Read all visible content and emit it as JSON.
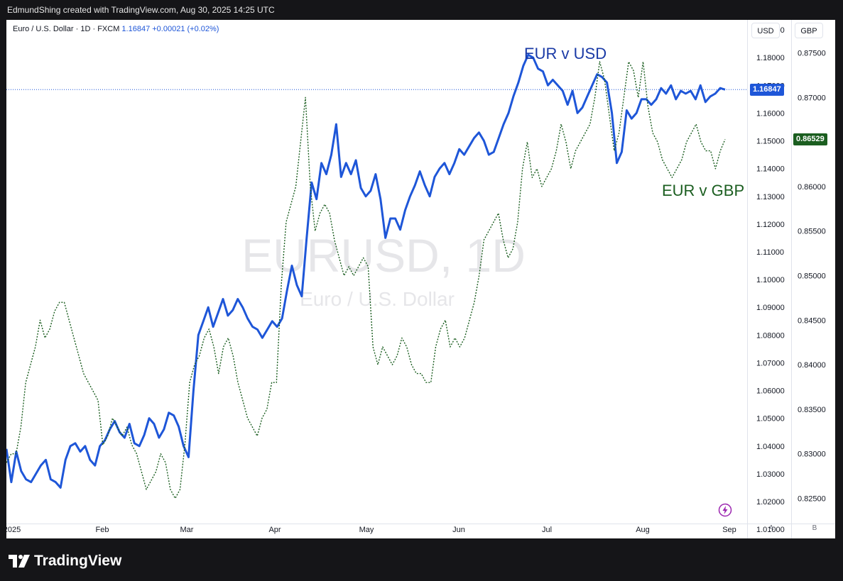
{
  "credit": "EdmundShing created with TradingView.com, Aug 30, 2025 14:25 UTC",
  "symbol": {
    "name": "Euro / U.S. Dollar · 1D · FXCM",
    "price": "1.16847",
    "change": "+0.00021 (+0.02%)"
  },
  "watermark": {
    "ticker": "EURUSD, 1D",
    "name": "Euro / U.S. Dollar"
  },
  "scale_buttons": {
    "left": "USD",
    "right": "GBP"
  },
  "axis_buttons": {
    "left": "A",
    "right": "B"
  },
  "logo_text": "TradingView",
  "colors": {
    "usd": "#1e56d8",
    "gbp": "#1b5e20",
    "background": "#151518"
  },
  "chart_data": {
    "type": "line",
    "x_axis": {
      "labels": [
        "2025",
        "Feb",
        "Mar",
        "Apr",
        "May",
        "Jun",
        "Jul",
        "Aug",
        "Sep"
      ]
    },
    "left_axis": {
      "ticks": [
        "1.19000",
        "1.18000",
        "1.17000",
        "1.16000",
        "1.15000",
        "1.14000",
        "1.13000",
        "1.12000",
        "1.11000",
        "1.10000",
        "1.09000",
        "1.08000",
        "1.07000",
        "1.06000",
        "1.05000",
        "1.04000",
        "1.03000",
        "1.02000",
        "1.01000"
      ],
      "range": [
        1.0067,
        1.1936
      ]
    },
    "right_axis": {
      "ticks": [
        "0.87500",
        "0.87000",
        "0.86500",
        "0.86000",
        "0.85500",
        "0.85000",
        "0.84500",
        "0.84000",
        "0.83500",
        "0.83000",
        "0.82500"
      ],
      "range": [
        0.8205,
        0.8787
      ]
    },
    "annotations": {
      "usd": "EUR v USD",
      "gbp": "EUR v GBP"
    },
    "last_values": {
      "usd": "1.16847",
      "gbp": "0.86529"
    },
    "series": [
      {
        "name": "EUR v USD",
        "axis": "left",
        "style": "solid",
        "values": [
          1.039,
          1.027,
          1.038,
          1.031,
          1.028,
          1.027,
          1.03,
          1.033,
          1.035,
          1.028,
          1.027,
          1.025,
          1.035,
          1.04,
          1.041,
          1.038,
          1.04,
          1.035,
          1.033,
          1.04,
          1.042,
          1.046,
          1.049,
          1.045,
          1.043,
          1.048,
          1.041,
          1.04,
          1.044,
          1.05,
          1.048,
          1.043,
          1.046,
          1.052,
          1.051,
          1.047,
          1.04,
          1.036,
          1.06,
          1.08,
          1.085,
          1.09,
          1.083,
          1.088,
          1.093,
          1.087,
          1.089,
          1.093,
          1.09,
          1.086,
          1.083,
          1.082,
          1.079,
          1.082,
          1.085,
          1.083,
          1.086,
          1.096,
          1.105,
          1.098,
          1.094,
          1.115,
          1.135,
          1.129,
          1.142,
          1.138,
          1.145,
          1.156,
          1.137,
          1.142,
          1.138,
          1.143,
          1.133,
          1.13,
          1.132,
          1.138,
          1.129,
          1.115,
          1.122,
          1.122,
          1.118,
          1.125,
          1.13,
          1.134,
          1.139,
          1.134,
          1.13,
          1.137,
          1.14,
          1.142,
          1.138,
          1.142,
          1.147,
          1.145,
          1.148,
          1.151,
          1.153,
          1.15,
          1.145,
          1.146,
          1.151,
          1.156,
          1.16,
          1.166,
          1.171,
          1.177,
          1.181,
          1.18,
          1.176,
          1.175,
          1.17,
          1.172,
          1.17,
          1.168,
          1.163,
          1.168,
          1.16,
          1.162,
          1.166,
          1.17,
          1.174,
          1.173,
          1.171,
          1.16,
          1.142,
          1.146,
          1.161,
          1.158,
          1.16,
          1.165,
          1.165,
          1.163,
          1.165,
          1.169,
          1.167,
          1.17,
          1.165,
          1.168,
          1.167,
          1.168,
          1.165,
          1.17,
          1.164,
          1.166,
          1.167,
          1.169,
          1.16847
        ]
      },
      {
        "name": "EUR v GBP",
        "axis": "right",
        "style": "dotted",
        "values": [
          0.829,
          0.83,
          0.83,
          0.833,
          0.838,
          0.84,
          0.842,
          0.845,
          0.843,
          0.844,
          0.846,
          0.847,
          0.847,
          0.845,
          0.843,
          0.841,
          0.839,
          0.838,
          0.837,
          0.836,
          0.831,
          0.832,
          0.834,
          0.833,
          0.832,
          0.833,
          0.831,
          0.83,
          0.828,
          0.826,
          0.827,
          0.828,
          0.83,
          0.829,
          0.826,
          0.825,
          0.826,
          0.831,
          0.838,
          0.84,
          0.841,
          0.843,
          0.844,
          0.842,
          0.839,
          0.842,
          0.843,
          0.841,
          0.838,
          0.836,
          0.834,
          0.833,
          0.832,
          0.834,
          0.835,
          0.838,
          0.838,
          0.849,
          0.856,
          0.858,
          0.86,
          0.865,
          0.87,
          0.86,
          0.855,
          0.857,
          0.858,
          0.857,
          0.854,
          0.852,
          0.85,
          0.851,
          0.85,
          0.851,
          0.852,
          0.851,
          0.842,
          0.84,
          0.842,
          0.841,
          0.84,
          0.841,
          0.843,
          0.842,
          0.84,
          0.839,
          0.839,
          0.838,
          0.838,
          0.842,
          0.844,
          0.845,
          0.842,
          0.843,
          0.842,
          0.843,
          0.845,
          0.847,
          0.85,
          0.854,
          0.855,
          0.856,
          0.857,
          0.854,
          0.852,
          0.853,
          0.856,
          0.862,
          0.865,
          0.861,
          0.862,
          0.86,
          0.861,
          0.862,
          0.864,
          0.867,
          0.865,
          0.862,
          0.864,
          0.865,
          0.866,
          0.867,
          0.87,
          0.874,
          0.872,
          0.868,
          0.864,
          0.866,
          0.87,
          0.874,
          0.873,
          0.87,
          0.874,
          0.869,
          0.866,
          0.865,
          0.863,
          0.862,
          0.861,
          0.862,
          0.863,
          0.865,
          0.866,
          0.867,
          0.865,
          0.864,
          0.864,
          0.862,
          0.864,
          0.86529
        ]
      }
    ]
  }
}
